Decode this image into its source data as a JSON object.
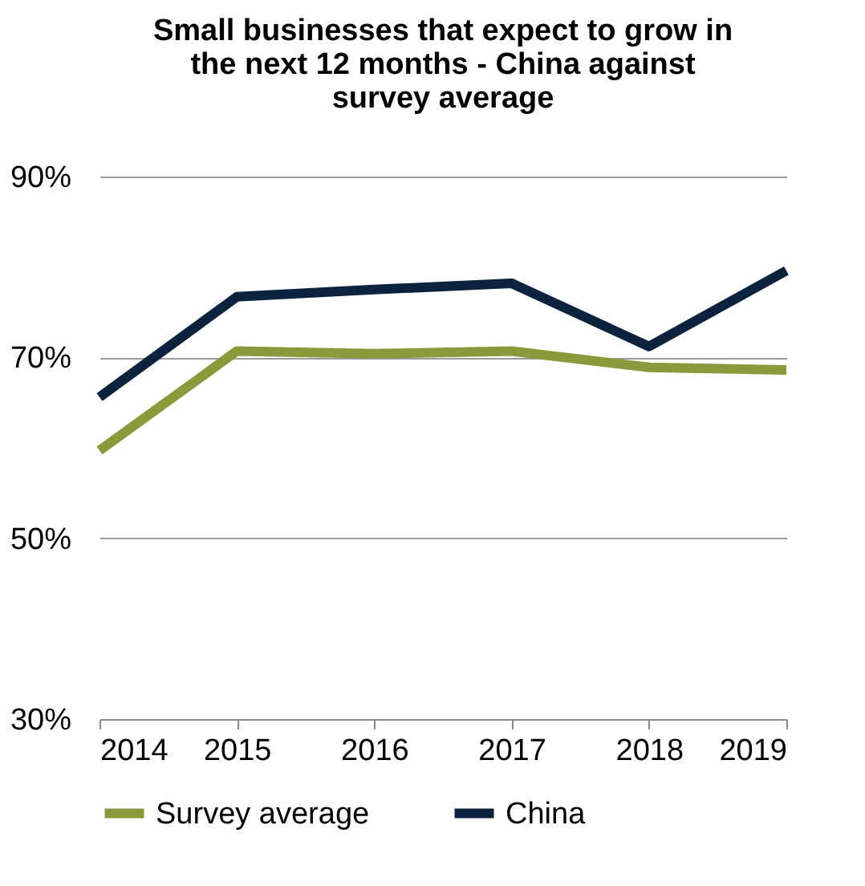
{
  "chart_data": {
    "type": "line",
    "title": "Small businesses that expect to grow in the next 12 months - China against survey average",
    "categories": [
      "2014",
      "2015",
      "2016",
      "2017",
      "2018",
      "2019"
    ],
    "series": [
      {
        "name": "Survey average",
        "color": "#8a9a3b",
        "values": [
          59.7,
          70.7,
          70.4,
          70.7,
          68.9,
          68.6
        ]
      },
      {
        "name": "China",
        "color": "#0c2340",
        "values": [
          65.6,
          76.7,
          77.5,
          78.2,
          71.2,
          79.6
        ]
      }
    ],
    "ylim": [
      30,
      90
    ],
    "yticks": [
      {
        "value": 30,
        "label": "30%"
      },
      {
        "value": 50,
        "label": "50%"
      },
      {
        "value": 70,
        "label": "70%"
      },
      {
        "value": 90,
        "label": "90%"
      }
    ],
    "grid": "y",
    "legend": "bottom",
    "marker": "none",
    "line_style": "solid"
  }
}
